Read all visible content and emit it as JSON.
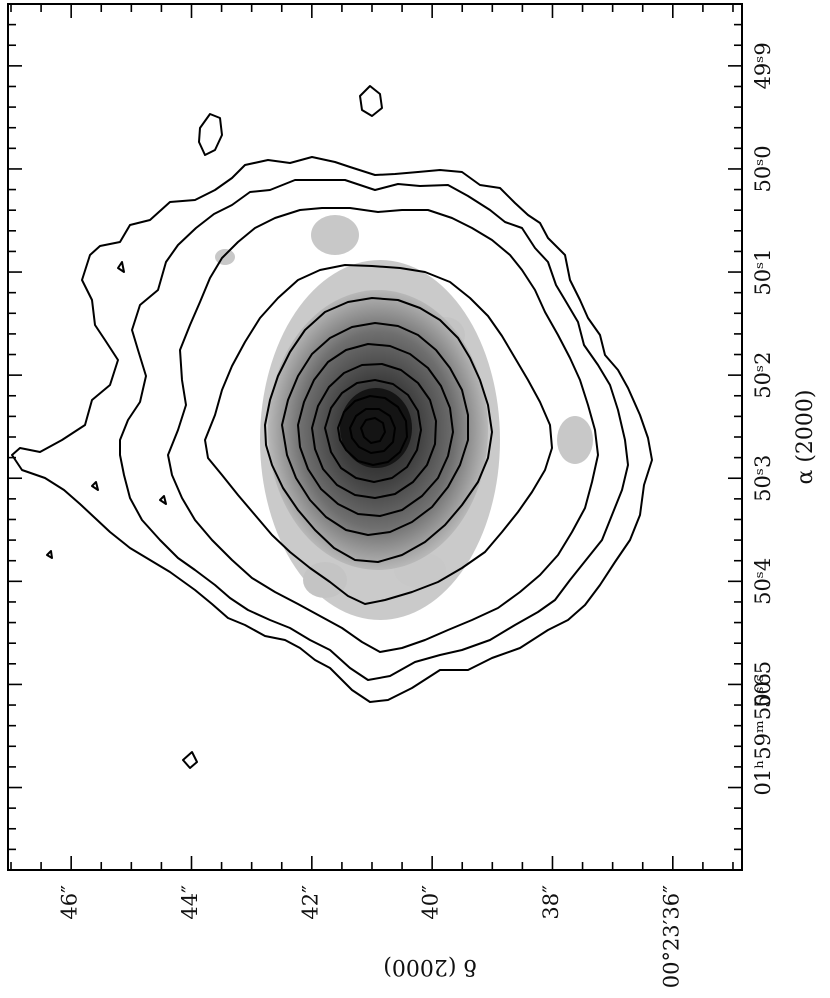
{
  "chart_data": {
    "type": "contour",
    "title": "",
    "xlabel": "α (2000)",
    "ylabel": "δ (2000)",
    "x_ticks": [
      {
        "value": 49.9,
        "label": "49ˢ9"
      },
      {
        "value": 50.0,
        "label": "50ˢ0"
      },
      {
        "value": 50.1,
        "label": "50ˢ1"
      },
      {
        "value": 50.2,
        "label": "50ˢ2"
      },
      {
        "value": 50.3,
        "label": "50ˢ3"
      },
      {
        "value": 50.4,
        "label": "50ˢ4"
      },
      {
        "value": 50.5,
        "label": "50ˢ5"
      },
      {
        "value": 50.6,
        "label": "01ʰ59ᵐ50ˢ6"
      }
    ],
    "y_ticks": [
      {
        "value": 36,
        "label": "00°23′36″"
      },
      {
        "value": 38,
        "label": "38″"
      },
      {
        "value": 40,
        "label": "40″"
      },
      {
        "value": 42,
        "label": "42″"
      },
      {
        "value": 44,
        "label": "44″"
      },
      {
        "value": 46,
        "label": "46″"
      }
    ],
    "xlim": [
      49.84,
      50.68
    ],
    "ylim": [
      34.85,
      47.05
    ],
    "peak": {
      "ra_s": 50.25,
      "dec_arcsec": 40.8
    },
    "grayscale_fill": "#6a6a6a",
    "line_color": "#000000",
    "grid": false
  }
}
